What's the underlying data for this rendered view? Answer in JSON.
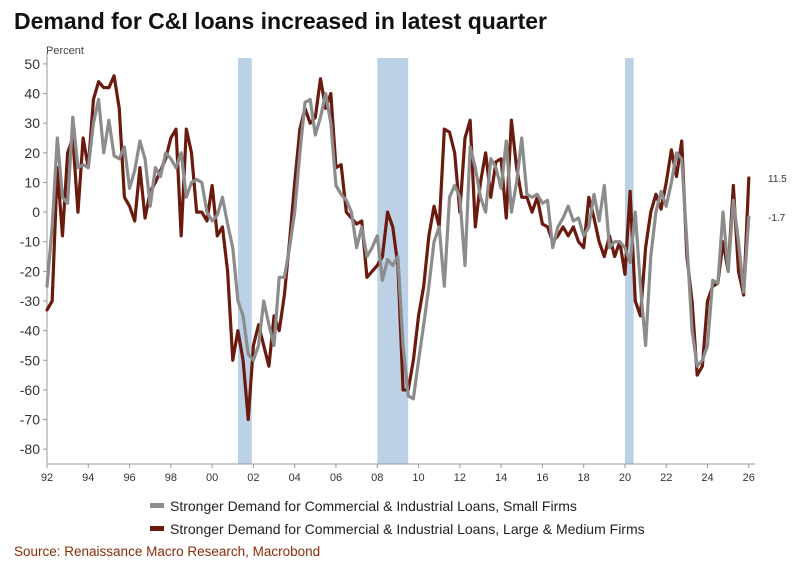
{
  "title": "Demand for C&I loans increased in latest quarter",
  "source": "Source: Renaissance Macro Research, Macrobond",
  "colors": {
    "small_firms": "#8c8c8c",
    "large_firms": "#6b1a0e",
    "recession": "#bcd1e6"
  },
  "chart_data": {
    "type": "line",
    "ylabel": "Percent",
    "xlim": [
      1992,
      2026.3
    ],
    "ylim": [
      -85,
      52
    ],
    "y_ticks": [
      50,
      40,
      30,
      20,
      10,
      0,
      -10,
      -20,
      -30,
      -40,
      -50,
      -60,
      -70,
      -80
    ],
    "x_tick_labels": [
      "92",
      "94",
      "96",
      "98",
      "00",
      "02",
      "04",
      "06",
      "08",
      "10",
      "12",
      "14",
      "16",
      "18",
      "20",
      "22",
      "24",
      "26"
    ],
    "x_tick_years": [
      1992,
      1994,
      1996,
      1998,
      2000,
      2002,
      2004,
      2006,
      2008,
      2010,
      2012,
      2014,
      2016,
      2018,
      2020,
      2022,
      2024,
      2026
    ],
    "recessions": [
      [
        2001.25,
        2001.92
      ],
      [
        2008.0,
        2009.5
      ],
      [
        2020.0,
        2020.42
      ]
    ],
    "series": [
      {
        "name": "Stronger Demand for Commercial & Industrial Loans, Small Firms",
        "color": "#8c8c8c",
        "end_label": "-1.7",
        "points": [
          [
            1992.0,
            -25
          ],
          [
            1992.25,
            -5
          ],
          [
            1992.5,
            25
          ],
          [
            1992.75,
            5
          ],
          [
            1993.0,
            3
          ],
          [
            1993.25,
            32
          ],
          [
            1993.5,
            15
          ],
          [
            1993.75,
            16
          ],
          [
            1994.0,
            15
          ],
          [
            1994.25,
            30
          ],
          [
            1994.5,
            38
          ],
          [
            1994.75,
            20
          ],
          [
            1995.0,
            31
          ],
          [
            1995.25,
            19
          ],
          [
            1995.5,
            18
          ],
          [
            1995.75,
            22
          ],
          [
            1996.0,
            8
          ],
          [
            1996.25,
            14
          ],
          [
            1996.5,
            24
          ],
          [
            1996.75,
            18
          ],
          [
            1997.0,
            2
          ],
          [
            1997.25,
            15
          ],
          [
            1997.5,
            12
          ],
          [
            1997.75,
            20
          ],
          [
            1998.0,
            18
          ],
          [
            1998.25,
            15
          ],
          [
            1998.5,
            20
          ],
          [
            1998.75,
            5
          ],
          [
            1999.0,
            10
          ],
          [
            1999.25,
            11
          ],
          [
            1999.5,
            10
          ],
          [
            1999.75,
            0
          ],
          [
            2000.0,
            -3
          ],
          [
            2000.25,
            -1
          ],
          [
            2000.5,
            5
          ],
          [
            2000.75,
            -4
          ],
          [
            2001.0,
            -12
          ],
          [
            2001.25,
            -30
          ],
          [
            2001.5,
            -35
          ],
          [
            2001.75,
            -48
          ],
          [
            2002.0,
            -50
          ],
          [
            2002.25,
            -45
          ],
          [
            2002.5,
            -30
          ],
          [
            2002.75,
            -38
          ],
          [
            2003.0,
            -45
          ],
          [
            2003.25,
            -22
          ],
          [
            2003.5,
            -22
          ],
          [
            2003.75,
            -12
          ],
          [
            2004.0,
            0
          ],
          [
            2004.25,
            20
          ],
          [
            2004.5,
            37
          ],
          [
            2004.75,
            38
          ],
          [
            2005.0,
            26
          ],
          [
            2005.25,
            32
          ],
          [
            2005.5,
            40
          ],
          [
            2005.75,
            30
          ],
          [
            2006.0,
            9
          ],
          [
            2006.25,
            6
          ],
          [
            2006.5,
            4
          ],
          [
            2006.75,
            0
          ],
          [
            2007.0,
            -12
          ],
          [
            2007.25,
            -5
          ],
          [
            2007.5,
            -15
          ],
          [
            2007.75,
            -12
          ],
          [
            2008.0,
            -8
          ],
          [
            2008.25,
            -23
          ],
          [
            2008.5,
            -16
          ],
          [
            2008.75,
            -18
          ],
          [
            2009.0,
            -15
          ],
          [
            2009.25,
            -45
          ],
          [
            2009.5,
            -62
          ],
          [
            2009.75,
            -63
          ],
          [
            2010.0,
            -50
          ],
          [
            2010.25,
            -38
          ],
          [
            2010.5,
            -25
          ],
          [
            2010.75,
            -10
          ],
          [
            2011.0,
            -5
          ],
          [
            2011.25,
            -25
          ],
          [
            2011.5,
            5
          ],
          [
            2011.75,
            9
          ],
          [
            2012.0,
            5
          ],
          [
            2012.25,
            -18
          ],
          [
            2012.5,
            22
          ],
          [
            2012.75,
            15
          ],
          [
            2013.0,
            5
          ],
          [
            2013.25,
            0
          ],
          [
            2013.5,
            18
          ],
          [
            2013.75,
            15
          ],
          [
            2014.0,
            8
          ],
          [
            2014.25,
            24
          ],
          [
            2014.5,
            0
          ],
          [
            2014.75,
            10
          ],
          [
            2015.0,
            25
          ],
          [
            2015.25,
            6
          ],
          [
            2015.5,
            5
          ],
          [
            2015.75,
            6
          ],
          [
            2016.0,
            3
          ],
          [
            2016.25,
            4
          ],
          [
            2016.5,
            -12
          ],
          [
            2016.75,
            -5
          ],
          [
            2017.0,
            -2
          ],
          [
            2017.25,
            2
          ],
          [
            2017.5,
            -3
          ],
          [
            2017.75,
            -2
          ],
          [
            2018.0,
            -8
          ],
          [
            2018.25,
            -5
          ],
          [
            2018.5,
            6
          ],
          [
            2018.75,
            -3
          ],
          [
            2019.0,
            9
          ],
          [
            2019.25,
            -12
          ],
          [
            2019.5,
            -10
          ],
          [
            2019.75,
            -10
          ],
          [
            2020.0,
            -12
          ],
          [
            2020.25,
            -17
          ],
          [
            2020.5,
            0
          ],
          [
            2020.75,
            -25
          ],
          [
            2021.0,
            -45
          ],
          [
            2021.25,
            -15
          ],
          [
            2021.5,
            0
          ],
          [
            2021.75,
            7
          ],
          [
            2022.0,
            2
          ],
          [
            2022.25,
            10
          ],
          [
            2022.5,
            20
          ],
          [
            2022.75,
            18
          ],
          [
            2023.0,
            -10
          ],
          [
            2023.25,
            -40
          ],
          [
            2023.5,
            -52
          ],
          [
            2023.75,
            -50
          ],
          [
            2024.0,
            -45
          ],
          [
            2024.25,
            -23
          ],
          [
            2024.5,
            -24
          ],
          [
            2024.75,
            0
          ],
          [
            2025.0,
            -20
          ],
          [
            2025.25,
            4
          ],
          [
            2025.5,
            -10
          ],
          [
            2025.75,
            -27
          ],
          [
            2026.0,
            -1.7
          ]
        ]
      },
      {
        "name": "Stronger Demand for Commercial & Industrial Loans, Large & Medium Firms",
        "color": "#6b1a0e",
        "end_label": "11.5",
        "points": [
          [
            1992.0,
            -33
          ],
          [
            1992.25,
            -30
          ],
          [
            1992.5,
            15
          ],
          [
            1992.75,
            -8
          ],
          [
            1993.0,
            20
          ],
          [
            1993.25,
            25
          ],
          [
            1993.5,
            0
          ],
          [
            1993.75,
            25
          ],
          [
            1994.0,
            15
          ],
          [
            1994.25,
            38
          ],
          [
            1994.5,
            44
          ],
          [
            1994.75,
            42
          ],
          [
            1995.0,
            42
          ],
          [
            1995.25,
            46
          ],
          [
            1995.5,
            35
          ],
          [
            1995.75,
            5
          ],
          [
            1996.0,
            2
          ],
          [
            1996.25,
            -3
          ],
          [
            1996.5,
            15
          ],
          [
            1996.75,
            -2
          ],
          [
            1997.0,
            7
          ],
          [
            1997.25,
            10
          ],
          [
            1997.5,
            14
          ],
          [
            1997.75,
            18
          ],
          [
            1998.0,
            25
          ],
          [
            1998.25,
            28
          ],
          [
            1998.5,
            -8
          ],
          [
            1998.75,
            28
          ],
          [
            1999.0,
            20
          ],
          [
            1999.25,
            0
          ],
          [
            1999.5,
            0
          ],
          [
            1999.75,
            -3
          ],
          [
            2000.0,
            9
          ],
          [
            2000.25,
            -8
          ],
          [
            2000.5,
            -5
          ],
          [
            2000.75,
            -20
          ],
          [
            2001.0,
            -50
          ],
          [
            2001.25,
            -40
          ],
          [
            2001.5,
            -50
          ],
          [
            2001.75,
            -70
          ],
          [
            2002.0,
            -45
          ],
          [
            2002.25,
            -38
          ],
          [
            2002.5,
            -45
          ],
          [
            2002.75,
            -52
          ],
          [
            2003.0,
            -35
          ],
          [
            2003.25,
            -40
          ],
          [
            2003.5,
            -28
          ],
          [
            2003.75,
            -10
          ],
          [
            2004.0,
            10
          ],
          [
            2004.25,
            28
          ],
          [
            2004.5,
            35
          ],
          [
            2004.75,
            30
          ],
          [
            2005.0,
            32
          ],
          [
            2005.25,
            45
          ],
          [
            2005.5,
            35
          ],
          [
            2005.75,
            40
          ],
          [
            2006.0,
            15
          ],
          [
            2006.25,
            16
          ],
          [
            2006.5,
            0
          ],
          [
            2006.75,
            -2
          ],
          [
            2007.0,
            -4
          ],
          [
            2007.25,
            -3
          ],
          [
            2007.5,
            -22
          ],
          [
            2007.75,
            -20
          ],
          [
            2008.0,
            -18
          ],
          [
            2008.25,
            -15
          ],
          [
            2008.5,
            0
          ],
          [
            2008.75,
            -5
          ],
          [
            2009.0,
            -18
          ],
          [
            2009.25,
            -60
          ],
          [
            2009.5,
            -60
          ],
          [
            2009.75,
            -50
          ],
          [
            2010.0,
            -35
          ],
          [
            2010.25,
            -25
          ],
          [
            2010.5,
            -8
          ],
          [
            2010.75,
            2
          ],
          [
            2011.0,
            -5
          ],
          [
            2011.25,
            28
          ],
          [
            2011.5,
            27
          ],
          [
            2011.75,
            20
          ],
          [
            2012.0,
            0
          ],
          [
            2012.25,
            25
          ],
          [
            2012.5,
            31
          ],
          [
            2012.75,
            -5
          ],
          [
            2013.0,
            10
          ],
          [
            2013.25,
            20
          ],
          [
            2013.5,
            5
          ],
          [
            2013.75,
            17
          ],
          [
            2014.0,
            18
          ],
          [
            2014.25,
            -2
          ],
          [
            2014.5,
            31
          ],
          [
            2014.75,
            15
          ],
          [
            2015.0,
            5
          ],
          [
            2015.25,
            5
          ],
          [
            2015.5,
            0
          ],
          [
            2015.75,
            5
          ],
          [
            2016.0,
            -4
          ],
          [
            2016.25,
            -5
          ],
          [
            2016.5,
            -10
          ],
          [
            2016.75,
            -8
          ],
          [
            2017.0,
            -5
          ],
          [
            2017.25,
            -8
          ],
          [
            2017.5,
            -5
          ],
          [
            2017.75,
            -10
          ],
          [
            2018.0,
            -12
          ],
          [
            2018.25,
            5
          ],
          [
            2018.5,
            -2
          ],
          [
            2018.75,
            -10
          ],
          [
            2019.0,
            -15
          ],
          [
            2019.25,
            -8
          ],
          [
            2019.5,
            -15
          ],
          [
            2019.75,
            -10
          ],
          [
            2020.0,
            -21
          ],
          [
            2020.25,
            7
          ],
          [
            2020.5,
            -30
          ],
          [
            2020.75,
            -35
          ],
          [
            2021.0,
            -12
          ],
          [
            2021.25,
            0
          ],
          [
            2021.5,
            6
          ],
          [
            2021.75,
            1
          ],
          [
            2022.0,
            10
          ],
          [
            2022.25,
            21
          ],
          [
            2022.5,
            12
          ],
          [
            2022.75,
            24
          ],
          [
            2023.0,
            -15
          ],
          [
            2023.25,
            -30
          ],
          [
            2023.5,
            -55
          ],
          [
            2023.75,
            -52
          ],
          [
            2024.0,
            -30
          ],
          [
            2024.25,
            -25
          ],
          [
            2024.5,
            -24
          ],
          [
            2024.75,
            -10
          ],
          [
            2025.0,
            -20
          ],
          [
            2025.25,
            9
          ],
          [
            2025.5,
            -20
          ],
          [
            2025.75,
            -28
          ],
          [
            2026.0,
            11.5
          ]
        ]
      }
    ]
  }
}
